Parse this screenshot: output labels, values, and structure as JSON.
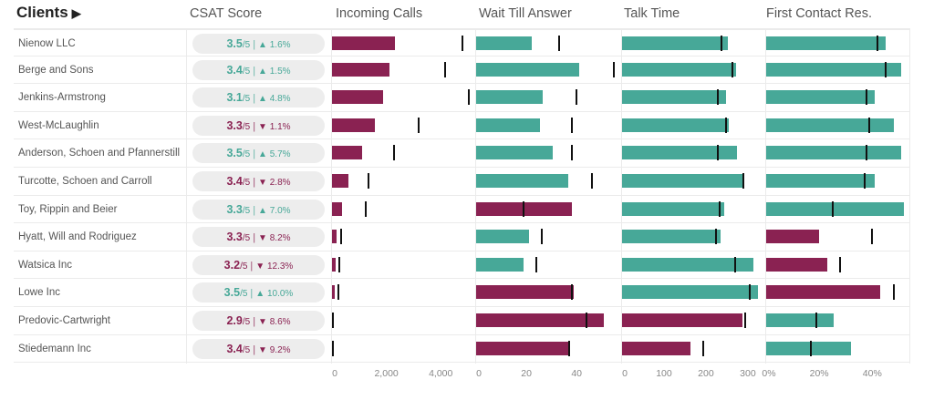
{
  "header": {
    "clients_label": "Clients",
    "clients_arrow": "▶",
    "columns": [
      "CSAT Score",
      "Incoming Calls",
      "Wait Till Answer",
      "Talk Time",
      "First Contact Res."
    ]
  },
  "colors": {
    "good": "#47a898",
    "bad": "#8a2252",
    "marker": "#111111",
    "pill_bg": "#ededed"
  },
  "axes": {
    "incoming": {
      "ticks": [
        "0",
        "2,000",
        "4,000"
      ],
      "tick_values": [
        0,
        2000,
        4000
      ],
      "max": 5200
    },
    "wait": {
      "ticks": [
        "0",
        "20",
        "40"
      ],
      "tick_values": [
        0,
        20,
        40
      ],
      "max": 57
    },
    "talk": {
      "ticks": [
        "0",
        "100",
        "200",
        "300"
      ],
      "tick_values": [
        0,
        100,
        200,
        300
      ],
      "max": 335
    },
    "fcr": {
      "ticks": [
        "0%",
        "20%",
        "40%"
      ],
      "tick_values": [
        0,
        20,
        40
      ],
      "max": 54
    }
  },
  "rows": [
    {
      "name": "Nienow LLC",
      "csat": {
        "score": "3.5",
        "denom": "/5",
        "dir": "up",
        "change": "1.6%"
      },
      "incoming": {
        "value": 2320,
        "target": 4800,
        "status": "bad"
      },
      "wait": {
        "value": 22,
        "target": 33,
        "status": "good"
      },
      "talk": {
        "value": 252,
        "target": 237,
        "status": "good"
      },
      "fcr": {
        "value": 45,
        "target": 42,
        "status": "good"
      }
    },
    {
      "name": "Berge and Sons",
      "csat": {
        "score": "3.4",
        "denom": "/5",
        "dir": "up",
        "change": "1.5%"
      },
      "incoming": {
        "value": 2120,
        "target": 4170,
        "status": "bad"
      },
      "wait": {
        "value": 41,
        "target": 55,
        "status": "good"
      },
      "talk": {
        "value": 272,
        "target": 263,
        "status": "good"
      },
      "fcr": {
        "value": 51,
        "target": 45,
        "status": "good"
      }
    },
    {
      "name": "Jenkins-Armstrong",
      "csat": {
        "score": "3.1",
        "denom": "/5",
        "dir": "up",
        "change": "4.8%"
      },
      "incoming": {
        "value": 1880,
        "target": 5040,
        "status": "bad"
      },
      "wait": {
        "value": 26.5,
        "target": 40,
        "status": "good"
      },
      "talk": {
        "value": 248,
        "target": 228,
        "status": "good"
      },
      "fcr": {
        "value": 41,
        "target": 38,
        "status": "good"
      }
    },
    {
      "name": "West-McLaughlin",
      "csat": {
        "score": "3.3",
        "denom": "/5",
        "dir": "down",
        "change": "1.1%"
      },
      "incoming": {
        "value": 1580,
        "target": 3190,
        "status": "bad"
      },
      "wait": {
        "value": 25.5,
        "target": 38,
        "status": "good"
      },
      "talk": {
        "value": 254,
        "target": 248,
        "status": "good"
      },
      "fcr": {
        "value": 48,
        "target": 39,
        "status": "good"
      }
    },
    {
      "name": "Anderson, Schoen and Pfannerstill",
      "csat": {
        "score": "3.5",
        "denom": "/5",
        "dir": "up",
        "change": "5.7%"
      },
      "incoming": {
        "value": 1110,
        "target": 2290,
        "status": "bad"
      },
      "wait": {
        "value": 30.5,
        "target": 38,
        "status": "good"
      },
      "talk": {
        "value": 274,
        "target": 228,
        "status": "good"
      },
      "fcr": {
        "value": 51,
        "target": 38,
        "status": "good"
      }
    },
    {
      "name": "Turcotte, Schoen and Carroll",
      "csat": {
        "score": "3.4",
        "denom": "/5",
        "dir": "down",
        "change": "2.8%"
      },
      "incoming": {
        "value": 600,
        "target": 1340,
        "status": "bad"
      },
      "wait": {
        "value": 36.7,
        "target": 46,
        "status": "good"
      },
      "talk": {
        "value": 289,
        "target": 289,
        "status": "good"
      },
      "fcr": {
        "value": 41,
        "target": 37,
        "status": "good"
      }
    },
    {
      "name": "Toy, Rippin and Beier",
      "csat": {
        "score": "3.3",
        "denom": "/5",
        "dir": "up",
        "change": "7.0%"
      },
      "incoming": {
        "value": 370,
        "target": 1240,
        "status": "bad"
      },
      "wait": {
        "value": 38,
        "target": 19,
        "status": "bad"
      },
      "talk": {
        "value": 243,
        "target": 233,
        "status": "good"
      },
      "fcr": {
        "value": 52,
        "target": 25,
        "status": "good"
      }
    },
    {
      "name": "Hyatt, Will and Rodriguez",
      "csat": {
        "score": "3.3",
        "denom": "/5",
        "dir": "down",
        "change": "8.2%"
      },
      "incoming": {
        "value": 170,
        "target": 340,
        "status": "bad"
      },
      "wait": {
        "value": 21,
        "target": 26,
        "status": "good"
      },
      "talk": {
        "value": 235,
        "target": 224,
        "status": "good"
      },
      "fcr": {
        "value": 20,
        "target": 40,
        "status": "bad"
      }
    },
    {
      "name": "Watsica Inc",
      "csat": {
        "score": "3.2",
        "denom": "/5",
        "dir": "down",
        "change": "12.3%"
      },
      "incoming": {
        "value": 130,
        "target": 270,
        "status": "bad"
      },
      "wait": {
        "value": 19,
        "target": 24,
        "status": "good"
      },
      "talk": {
        "value": 313,
        "target": 270,
        "status": "good"
      },
      "fcr": {
        "value": 23,
        "target": 28,
        "status": "bad"
      }
    },
    {
      "name": "Lowe Inc",
      "csat": {
        "score": "3.5",
        "denom": "/5",
        "dir": "up",
        "change": "10.0%"
      },
      "incoming": {
        "value": 100,
        "target": 230,
        "status": "bad"
      },
      "wait": {
        "value": 39,
        "target": 38,
        "status": "bad"
      },
      "talk": {
        "value": 324,
        "target": 304,
        "status": "good"
      },
      "fcr": {
        "value": 43,
        "target": 48,
        "status": "bad"
      }
    },
    {
      "name": "Predovic-Cartwright",
      "csat": {
        "score": "2.9",
        "denom": "/5",
        "dir": "down",
        "change": "8.6%"
      },
      "incoming": {
        "value": 30,
        "target": 40,
        "status": "good"
      },
      "wait": {
        "value": 51,
        "target": 44,
        "status": "bad"
      },
      "talk": {
        "value": 287,
        "target": 293,
        "status": "bad"
      },
      "fcr": {
        "value": 25.5,
        "target": 19,
        "status": "good"
      }
    },
    {
      "name": "Stiedemann Inc",
      "csat": {
        "score": "3.4",
        "denom": "/5",
        "dir": "down",
        "change": "9.2%"
      },
      "incoming": {
        "value": 10,
        "target": 30,
        "status": "bad"
      },
      "wait": {
        "value": 37,
        "target": 37,
        "status": "bad"
      },
      "talk": {
        "value": 163,
        "target": 193,
        "status": "bad"
      },
      "fcr": {
        "value": 32,
        "target": 17,
        "status": "good"
      }
    }
  ]
}
